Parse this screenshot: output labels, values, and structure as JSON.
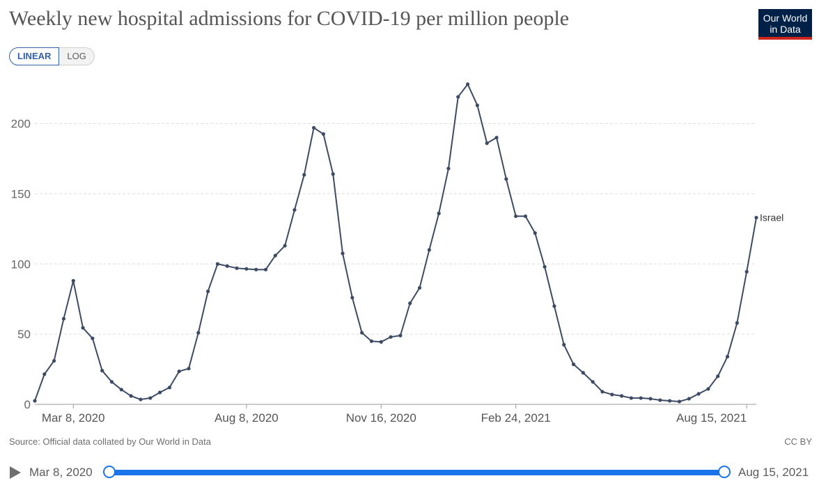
{
  "title": "Weekly new hospital admissions for COVID-19 per million people",
  "logo": {
    "line1": "Our World",
    "line2": "in Data"
  },
  "scale_toggle": {
    "linear_label": "LINEAR",
    "log_label": "LOG",
    "selected": "LINEAR"
  },
  "source": "Source: Official data collated by Our World in Data",
  "license": "CC BY",
  "timeline": {
    "start_label": "Mar 8, 2020",
    "end_label": "Aug 15, 2021"
  },
  "colors": {
    "line": "#3d4a63",
    "grid": "#dddddd",
    "axis": "#9a9a9a",
    "slider": "#1a73e8"
  },
  "chart_data": {
    "type": "line",
    "title": "Weekly new hospital admissions for COVID-19 per million people",
    "xlabel": "",
    "ylabel": "",
    "ylim": [
      0,
      230
    ],
    "yticks": [
      0,
      50,
      100,
      150,
      200
    ],
    "x_tick_labels": [
      "Mar 8, 2020",
      "Aug 8, 2020",
      "Nov 16, 2020",
      "Feb 24, 2021",
      "Aug 15, 2021"
    ],
    "x_tick_weeks": [
      4,
      22,
      36,
      50,
      74
    ],
    "grid": true,
    "series": [
      {
        "name": "Israel",
        "values": [
          2.5,
          21.5,
          31,
          61,
          88,
          54.5,
          47,
          24,
          16,
          10.5,
          6,
          3.5,
          4.5,
          8.5,
          12,
          23.5,
          25.5,
          51,
          80.5,
          100,
          98.5,
          97,
          96.5,
          96,
          96,
          106,
          113,
          138.5,
          163.5,
          197,
          192.5,
          164,
          107.5,
          76,
          51,
          45,
          44.5,
          48,
          49,
          72,
          83,
          110,
          136,
          168,
          219,
          228,
          213,
          186,
          190,
          160.5,
          134,
          134,
          122,
          98,
          70,
          42.5,
          28.5,
          22.5,
          16,
          9,
          7,
          6,
          4.5,
          4.5,
          4,
          3,
          2.5,
          2,
          4,
          7.5,
          11,
          20,
          34,
          58,
          94.5,
          133
        ]
      }
    ]
  }
}
